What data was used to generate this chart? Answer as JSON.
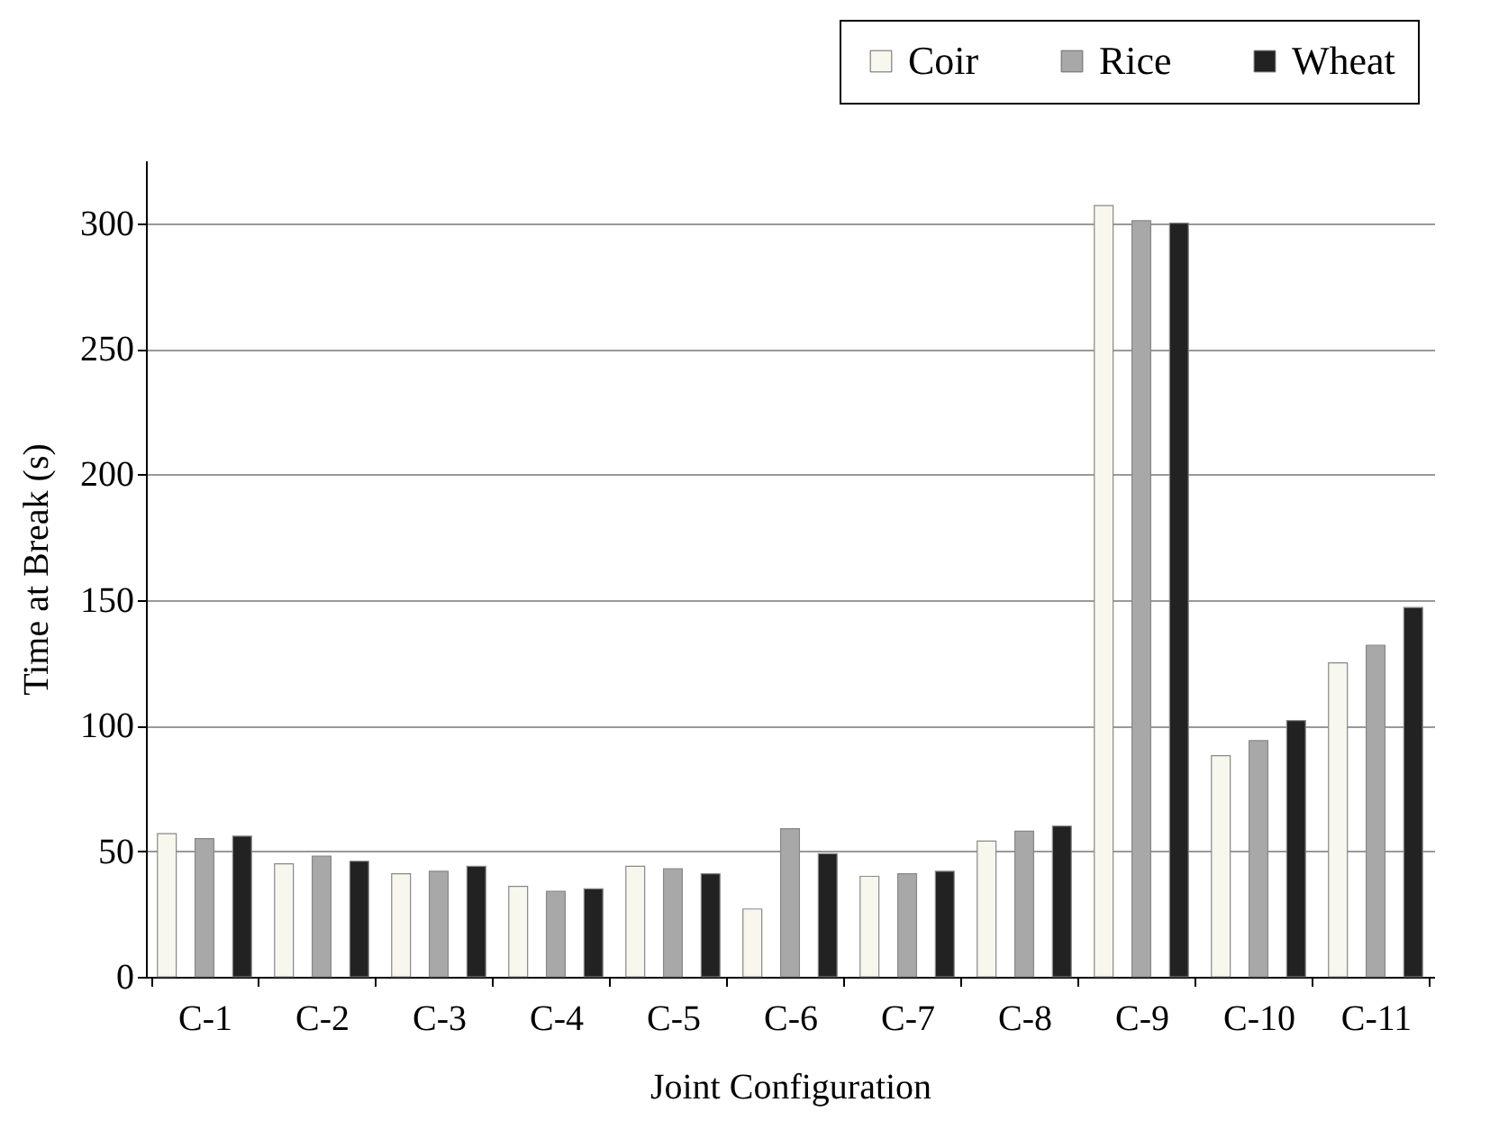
{
  "chart_data": {
    "type": "bar",
    "xlabel": "Joint Configuration",
    "ylabel": "Time at Break (s)",
    "categories": [
      "C-1",
      "C-2",
      "C-3",
      "C-4",
      "C-5",
      "C-6",
      "C-7",
      "C-8",
      "C-9",
      "C-10",
      "C-11"
    ],
    "series": [
      {
        "name": "Coir",
        "color": "#f7f7ee",
        "values": [
          57,
          45,
          41,
          36,
          44,
          27,
          40,
          54,
          307,
          88,
          125
        ]
      },
      {
        "name": "Rice",
        "color": "#a8a8a8",
        "values": [
          55,
          48,
          42,
          34,
          43,
          59,
          41,
          58,
          301,
          94,
          132
        ]
      },
      {
        "name": "Wheat",
        "color": "#222222",
        "values": [
          56,
          46,
          44,
          35,
          41,
          49,
          42,
          60,
          300,
          102,
          147
        ]
      }
    ],
    "ylim": [
      0,
      325
    ],
    "yticks": [
      0,
      50,
      100,
      150,
      200,
      250,
      300
    ],
    "grid": "y",
    "legend": "top right"
  }
}
